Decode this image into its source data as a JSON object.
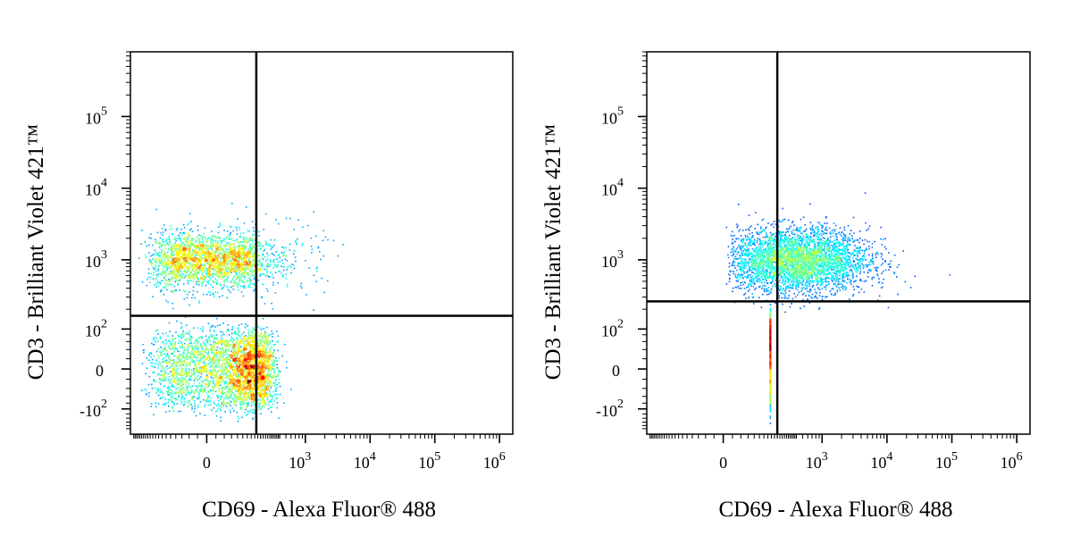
{
  "chart_data": [
    {
      "type": "scatter",
      "title": "",
      "xlabel": "CD69 - Alexa Fluor® 488",
      "ylabel": "CD3 - Brilliant Violet 421™",
      "x_scale": "biexponential",
      "y_scale": "biexponential",
      "x_ticks": [
        {
          "value": 0,
          "label": "0"
        },
        {
          "value": 1000,
          "label": "10",
          "sup": "3"
        },
        {
          "value": 10000,
          "label": "10",
          "sup": "4"
        },
        {
          "value": 100000,
          "label": "10",
          "sup": "5"
        },
        {
          "value": 1000000,
          "label": "10",
          "sup": "6"
        }
      ],
      "y_ticks": [
        {
          "value": -100,
          "label": "-10",
          "sup": "2"
        },
        {
          "value": 0,
          "label": "0"
        },
        {
          "value": 100,
          "label": "10",
          "sup": "2"
        },
        {
          "value": 1000,
          "label": "10",
          "sup": "3"
        },
        {
          "value": 10000,
          "label": "10",
          "sup": "4"
        },
        {
          "value": 100000,
          "label": "10",
          "sup": "5"
        }
      ],
      "quadrant_gate": {
        "x": 170,
        "y": 160
      },
      "populations": [
        {
          "name": "",
          "x_center": 0,
          "y_center": 1000,
          "x_spread": 90,
          "y_spread": 0.2,
          "count": 2200
        },
        {
          "name": "",
          "x_center": 70,
          "y_center": 0,
          "x_spread": 120,
          "y_spread": 45,
          "count": 3400
        },
        {
          "name": "",
          "x_center": 400,
          "y_center": 1000,
          "x_spread": 0.35,
          "y_spread": 0.25,
          "count": 200
        }
      ],
      "colormap": "jet",
      "grid": false
    },
    {
      "type": "scatter",
      "title": "",
      "xlabel": "CD69 - Alexa Fluor® 488",
      "ylabel": "CD3 - Brilliant Violet 421™",
      "x_scale": "biexponential",
      "y_scale": "biexponential",
      "x_ticks": [
        {
          "value": 0,
          "label": "0"
        },
        {
          "value": 1000,
          "label": "10",
          "sup": "3"
        },
        {
          "value": 10000,
          "label": "10",
          "sup": "4"
        },
        {
          "value": 100000,
          "label": "10",
          "sup": "5"
        },
        {
          "value": 1000000,
          "label": "10",
          "sup": "6"
        }
      ],
      "y_ticks": [
        {
          "value": -100,
          "label": "-10",
          "sup": "2"
        },
        {
          "value": 0,
          "label": "0"
        },
        {
          "value": 100,
          "label": "10",
          "sup": "2"
        },
        {
          "value": 1000,
          "label": "10",
          "sup": "3"
        },
        {
          "value": 10000,
          "label": "10",
          "sup": "4"
        },
        {
          "value": 100000,
          "label": "10",
          "sup": "5"
        }
      ],
      "quadrant_gate": {
        "x": 200,
        "y": 260
      },
      "populations": [
        {
          "name": "",
          "x_center": 400,
          "y_center": 1000,
          "x_spread": 0.55,
          "y_spread": 0.22,
          "count": 3800
        },
        {
          "name": "",
          "x_center": 150,
          "y_center": 40,
          "x_spread": 0.6,
          "y_spread": 60,
          "count": 900
        }
      ],
      "colormap": "jet",
      "grid": false
    }
  ]
}
